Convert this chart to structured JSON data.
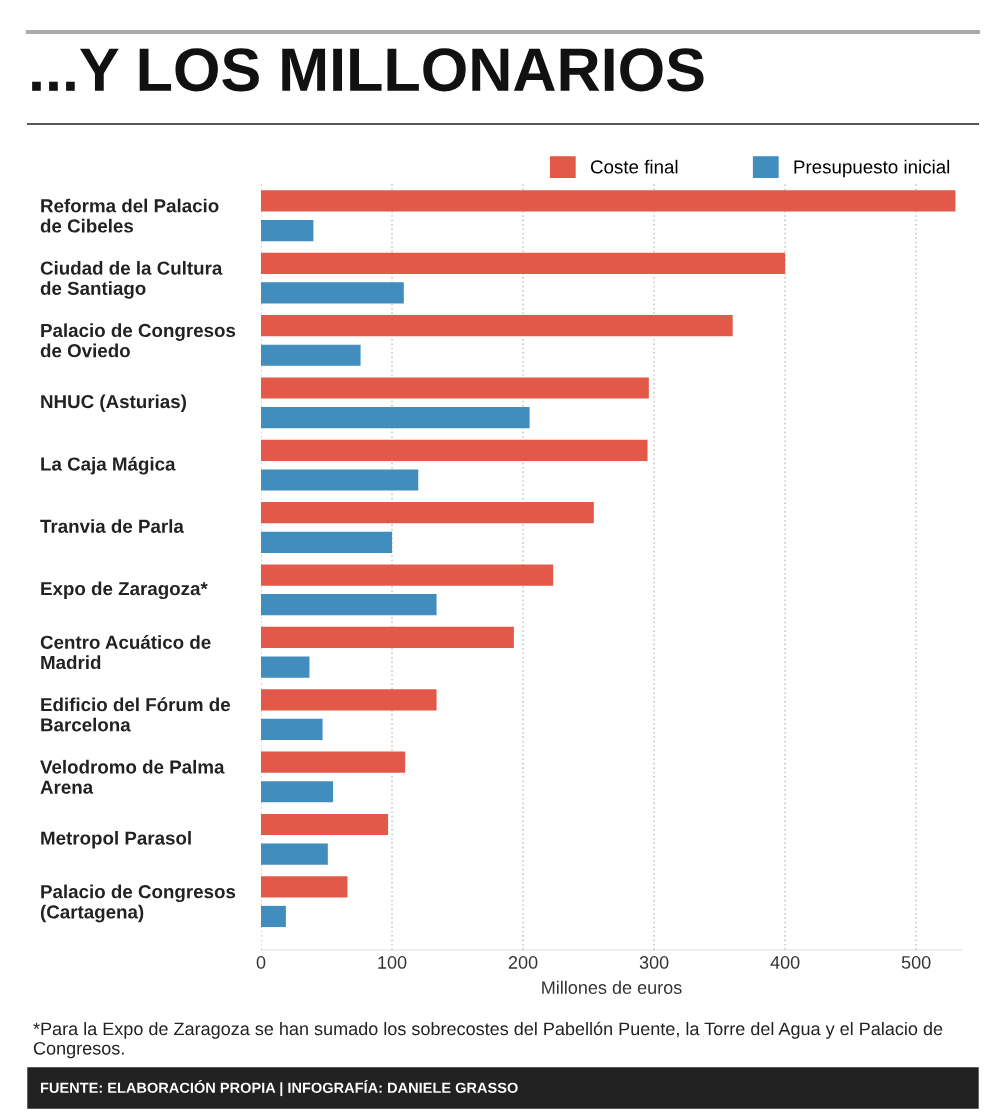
{
  "chart_data": {
    "type": "bar",
    "orientation": "horizontal",
    "title": "...Y LOS MILLONARIOS",
    "xlabel": "Millones de euros",
    "categories": [
      "Reforma del Palacio\nde Cibeles",
      "Ciudad de la Cultura\nde Santiago",
      "Palacio de Congresos\nde Oviedo",
      "NHUC (Asturias)",
      "La Caja Mágica",
      "Tranvia de Parla",
      "Expo de Zaragoza*",
      "Centro Acuático de\nMadrid",
      "Edificio del Fórum de\nBarcelona",
      "Velodromo de Palma\nArena",
      "Metropol Parasol",
      "Palacio de Congresos\n(Cartagena)"
    ],
    "series": [
      {
        "name": "Coste final",
        "color": "#e25849",
        "values": [
          530,
          400,
          360,
          296,
          295,
          254,
          223,
          193,
          134,
          110,
          97,
          66
        ]
      },
      {
        "name": "Presupuesto inicial",
        "color": "#418dbd",
        "values": [
          40,
          109,
          76,
          205,
          120,
          100,
          134,
          37,
          47,
          55,
          51,
          19
        ]
      }
    ],
    "xlim": [
      0,
      535
    ],
    "xticks": [
      0,
      100,
      200,
      300,
      400,
      500
    ],
    "grid": "x",
    "legend": "top right",
    "annotations": [
      "*Para la Expo de Zaragoza se han sumado los sobrecostes del Pabellón Puente, la Torre del Agua y el Palacio de Congresos.",
      "FUENTE: ELABORACIÓN PROPIA | INFOGRAFÍA: DANIELE GRASSO"
    ]
  }
}
